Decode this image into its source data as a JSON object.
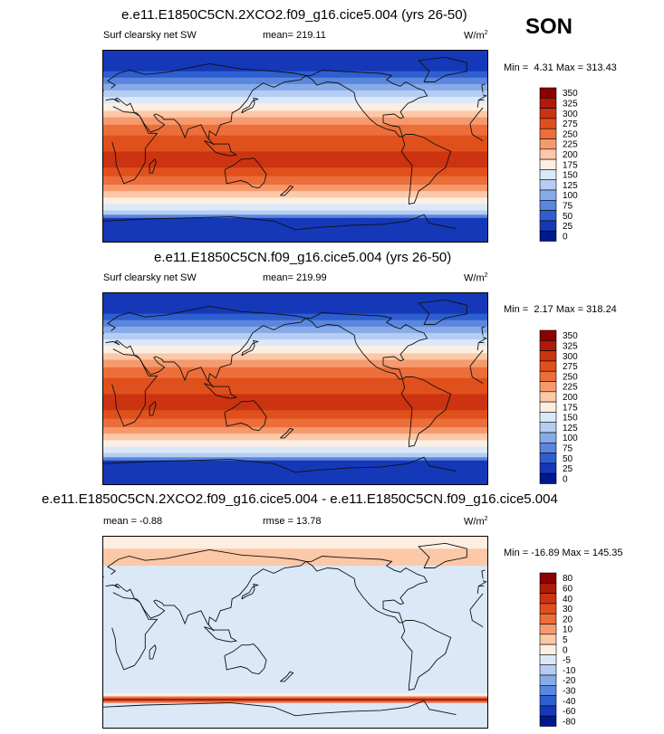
{
  "season": "SON",
  "panels": [
    {
      "title": "e.e11.E1850C5CN.2XCO2.f09_g16.cice5.004 (yrs 26-50)",
      "variable": "Surf clearsky net SW",
      "stat": "mean= 219.11",
      "units": "W/m",
      "units_sup": "2",
      "min_label": "Min =",
      "min_value": "4.31",
      "max_label": "Max =",
      "max_value": "313.43"
    },
    {
      "title": "e.e11.E1850C5CN.f09_g16.cice5.004 (yrs 26-50)",
      "variable": "Surf clearsky net SW",
      "stat": "mean= 219.99",
      "units": "W/m",
      "units_sup": "2",
      "min_label": "Min =",
      "min_value": "2.17",
      "max_label": "Max =",
      "max_value": "318.24"
    },
    {
      "title": "e.e11.E1850C5CN.2XCO2.f09_g16.cice5.004 - e.e11.E1850C5CN.f09_g16.cice5.004",
      "variable": "mean =  -0.88",
      "stat": "rmse =  13.78",
      "units": "W/m",
      "units_sup": "2",
      "min_label": "Min =",
      "min_value": "-16.89",
      "max_label": "Max =",
      "max_value": "145.35"
    }
  ],
  "chart_data": [
    {
      "type": "heatmap",
      "title": "e.e11.E1850C5CN.2XCO2.f09_g16.cice5.004 (yrs 26-50)",
      "field": "Surf clearsky net SW",
      "units": "W/m^2",
      "mean": 219.11,
      "min": 4.31,
      "max": 313.43,
      "colorbar_levels": [
        "350",
        "325",
        "300",
        "275",
        "250",
        "225",
        "200",
        "175",
        "150",
        "125",
        "100",
        "75",
        "50",
        "25",
        "0"
      ],
      "colorbar_colors": [
        "#8b0000",
        "#b01a0a",
        "#cc3311",
        "#e0501c",
        "#ec6e3a",
        "#f69a6e",
        "#fbc8a8",
        "#fdeee2",
        "#dbe8f8",
        "#b5cdf2",
        "#86abe8",
        "#5a86dd",
        "#2e5fd0",
        "#1438b8",
        "#00188c"
      ]
    },
    {
      "type": "heatmap",
      "title": "e.e11.E1850C5CN.f09_g16.cice5.004 (yrs 26-50)",
      "field": "Surf clearsky net SW",
      "units": "W/m^2",
      "mean": 219.99,
      "min": 2.17,
      "max": 318.24,
      "colorbar_levels": [
        "350",
        "325",
        "300",
        "275",
        "250",
        "225",
        "200",
        "175",
        "150",
        "125",
        "100",
        "75",
        "50",
        "25",
        "0"
      ],
      "colorbar_colors": [
        "#8b0000",
        "#b01a0a",
        "#cc3311",
        "#e0501c",
        "#ec6e3a",
        "#f69a6e",
        "#fbc8a8",
        "#fdeee2",
        "#dbe8f8",
        "#b5cdf2",
        "#86abe8",
        "#5a86dd",
        "#2e5fd0",
        "#1438b8",
        "#00188c"
      ]
    },
    {
      "type": "heatmap",
      "title": "e.e11.E1850C5CN.2XCO2.f09_g16.cice5.004 - e.e11.E1850C5CN.f09_g16.cice5.004",
      "field": "difference",
      "units": "W/m^2",
      "mean": -0.88,
      "rmse": 13.78,
      "min": -16.89,
      "max": 145.35,
      "colorbar_levels": [
        "80",
        "60",
        "40",
        "30",
        "20",
        "10",
        "5",
        "0",
        "-5",
        "-10",
        "-20",
        "-30",
        "-40",
        "-60",
        "-80"
      ],
      "colorbar_colors": [
        "#8b0000",
        "#b01a0a",
        "#cc3311",
        "#e0501c",
        "#ec6e3a",
        "#f69a6e",
        "#fbc8a8",
        "#fdeee2",
        "#dbe8f8",
        "#b5cdf2",
        "#86abe8",
        "#5a86dd",
        "#2e5fd0",
        "#1438b8",
        "#00188c"
      ]
    }
  ]
}
